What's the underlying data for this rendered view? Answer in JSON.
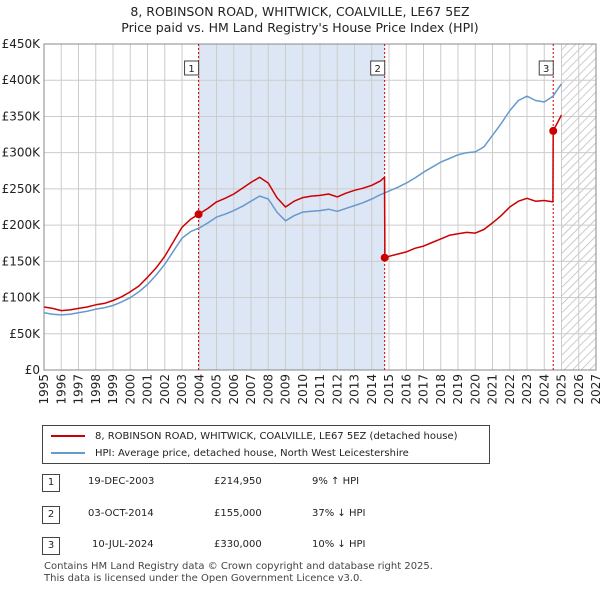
{
  "title_line1": "8, ROBINSON ROAD, WHITWICK, COALVILLE, LE67 5EZ",
  "title_line2": "Price paid vs. HM Land Registry's House Price Index (HPI)",
  "colors": {
    "property": "#cc0000",
    "hpi": "#6699cc",
    "shade": "#dde6f5",
    "grid": "#cccccc"
  },
  "chart_data": {
    "type": "line",
    "title": "8, ROBINSON ROAD, WHITWICK, COALVILLE, LE67 5EZ — Price paid vs. HM Land Registry's House Price Index (HPI)",
    "xlim": [
      1995,
      2027
    ],
    "ylim": [
      0,
      450000
    ],
    "x_ticks": [
      "1995",
      "1996",
      "1997",
      "1998",
      "1999",
      "2000",
      "2001",
      "2002",
      "2003",
      "2004",
      "2005",
      "2006",
      "2007",
      "2008",
      "2009",
      "2010",
      "2011",
      "2012",
      "2013",
      "2014",
      "2015",
      "2016",
      "2017",
      "2018",
      "2019",
      "2020",
      "2021",
      "2022",
      "2023",
      "2024",
      "2025",
      "2026",
      "2027"
    ],
    "y_ticks": [
      {
        "value": 0,
        "label": "£0"
      },
      {
        "value": 50000,
        "label": "£50K"
      },
      {
        "value": 100000,
        "label": "£100K"
      },
      {
        "value": 150000,
        "label": "£150K"
      },
      {
        "value": 200000,
        "label": "£200K"
      },
      {
        "value": 250000,
        "label": "£250K"
      },
      {
        "value": 300000,
        "label": "£300K"
      },
      {
        "value": 350000,
        "label": "£350K"
      },
      {
        "value": 400000,
        "label": "£400K"
      },
      {
        "value": 450000,
        "label": "£450K"
      }
    ],
    "shaded_spans": [
      [
        2003.96,
        2014.75
      ]
    ],
    "future_hatch_from": 2025.0,
    "series": [
      {
        "name": "8, ROBINSON ROAD, WHITWICK, COALVILLE, LE67 5EZ (detached house)",
        "color": "#cc0000",
        "x": [
          1995.0,
          1995.5,
          1996.0,
          1996.5,
          1997.0,
          1997.5,
          1998.0,
          1998.5,
          1999.0,
          1999.5,
          2000.0,
          2000.5,
          2001.0,
          2001.5,
          2002.0,
          2002.5,
          2003.0,
          2003.5,
          2003.96,
          2004.5,
          2005.0,
          2005.5,
          2006.0,
          2006.5,
          2007.0,
          2007.5,
          2008.0,
          2008.5,
          2009.0,
          2009.5,
          2010.0,
          2010.5,
          2011.0,
          2011.5,
          2012.0,
          2012.5,
          2013.0,
          2013.5,
          2014.0,
          2014.5,
          2014.74,
          2014.76,
          2015.0,
          2015.5,
          2016.0,
          2016.5,
          2017.0,
          2017.5,
          2018.0,
          2018.5,
          2019.0,
          2019.5,
          2020.0,
          2020.5,
          2021.0,
          2021.5,
          2022.0,
          2022.5,
          2023.0,
          2023.5,
          2024.0,
          2024.5,
          2024.52,
          2025.0
        ],
        "y": [
          87000,
          85000,
          82000,
          83000,
          85000,
          87000,
          90000,
          92000,
          96000,
          101000,
          108000,
          116000,
          128000,
          141000,
          157000,
          177000,
          197000,
          208000,
          214950,
          223000,
          232000,
          237000,
          243000,
          251000,
          259000,
          266000,
          258000,
          238000,
          225000,
          233000,
          238000,
          240000,
          241000,
          243000,
          239000,
          244000,
          248000,
          251000,
          255000,
          261000,
          266000,
          155000,
          157000,
          160000,
          163000,
          168000,
          171000,
          176000,
          181000,
          186000,
          188000,
          190000,
          189000,
          194000,
          203000,
          213000,
          225000,
          233000,
          237000,
          233000,
          234000,
          232000,
          330000,
          352000
        ]
      },
      {
        "name": "HPI: Average price, detached house, North West Leicestershire",
        "color": "#6699cc",
        "x": [
          1995.0,
          1995.5,
          1996.0,
          1996.5,
          1997.0,
          1997.5,
          1998.0,
          1998.5,
          1999.0,
          1999.5,
          2000.0,
          2000.5,
          2001.0,
          2001.5,
          2002.0,
          2002.5,
          2003.0,
          2003.5,
          2004.0,
          2004.5,
          2005.0,
          2005.5,
          2006.0,
          2006.5,
          2007.0,
          2007.5,
          2008.0,
          2008.5,
          2009.0,
          2009.5,
          2010.0,
          2010.5,
          2011.0,
          2011.5,
          2012.0,
          2012.5,
          2013.0,
          2013.5,
          2014.0,
          2014.5,
          2015.0,
          2015.5,
          2016.0,
          2016.5,
          2017.0,
          2017.5,
          2018.0,
          2018.5,
          2019.0,
          2019.5,
          2020.0,
          2020.5,
          2021.0,
          2021.5,
          2022.0,
          2022.5,
          2023.0,
          2023.5,
          2024.0,
          2024.5,
          2025.0
        ],
        "y": [
          79000,
          77000,
          76000,
          77000,
          79000,
          81000,
          84000,
          86000,
          89000,
          94000,
          100000,
          108000,
          118000,
          131000,
          146000,
          164000,
          182000,
          191000,
          196000,
          203000,
          211000,
          215000,
          220000,
          226000,
          233000,
          240000,
          236000,
          218000,
          206000,
          213000,
          218000,
          219000,
          220000,
          222000,
          219000,
          223000,
          227000,
          231000,
          236000,
          242000,
          247000,
          252000,
          258000,
          265000,
          273000,
          280000,
          287000,
          292000,
          297000,
          300000,
          301000,
          308000,
          324000,
          340000,
          358000,
          372000,
          378000,
          372000,
          370000,
          378000,
          395000
        ]
      }
    ],
    "sale_markers": [
      {
        "label": "1",
        "x": 2003.96,
        "y": 214950
      },
      {
        "label": "2",
        "x": 2014.75,
        "y": 155000
      },
      {
        "label": "3",
        "x": 2024.52,
        "y": 330000
      }
    ]
  },
  "legend": {
    "property": "8, ROBINSON ROAD, WHITWICK, COALVILLE, LE67 5EZ (detached house)",
    "hpi": "HPI: Average price, detached house, North West Leicestershire"
  },
  "transactions": [
    {
      "num": "1",
      "date": "19-DEC-2003",
      "price": "£214,950",
      "hpi": "9% ↑ HPI"
    },
    {
      "num": "2",
      "date": "03-OCT-2014",
      "price": "£155,000",
      "hpi": "37% ↓ HPI"
    },
    {
      "num": "3",
      "date": "10-JUL-2024",
      "price": "£330,000",
      "hpi": "10% ↓ HPI"
    }
  ],
  "footer_line1": "Contains HM Land Registry data © Crown copyright and database right 2025.",
  "footer_line2": "This data is licensed under the Open Government Licence v3.0."
}
